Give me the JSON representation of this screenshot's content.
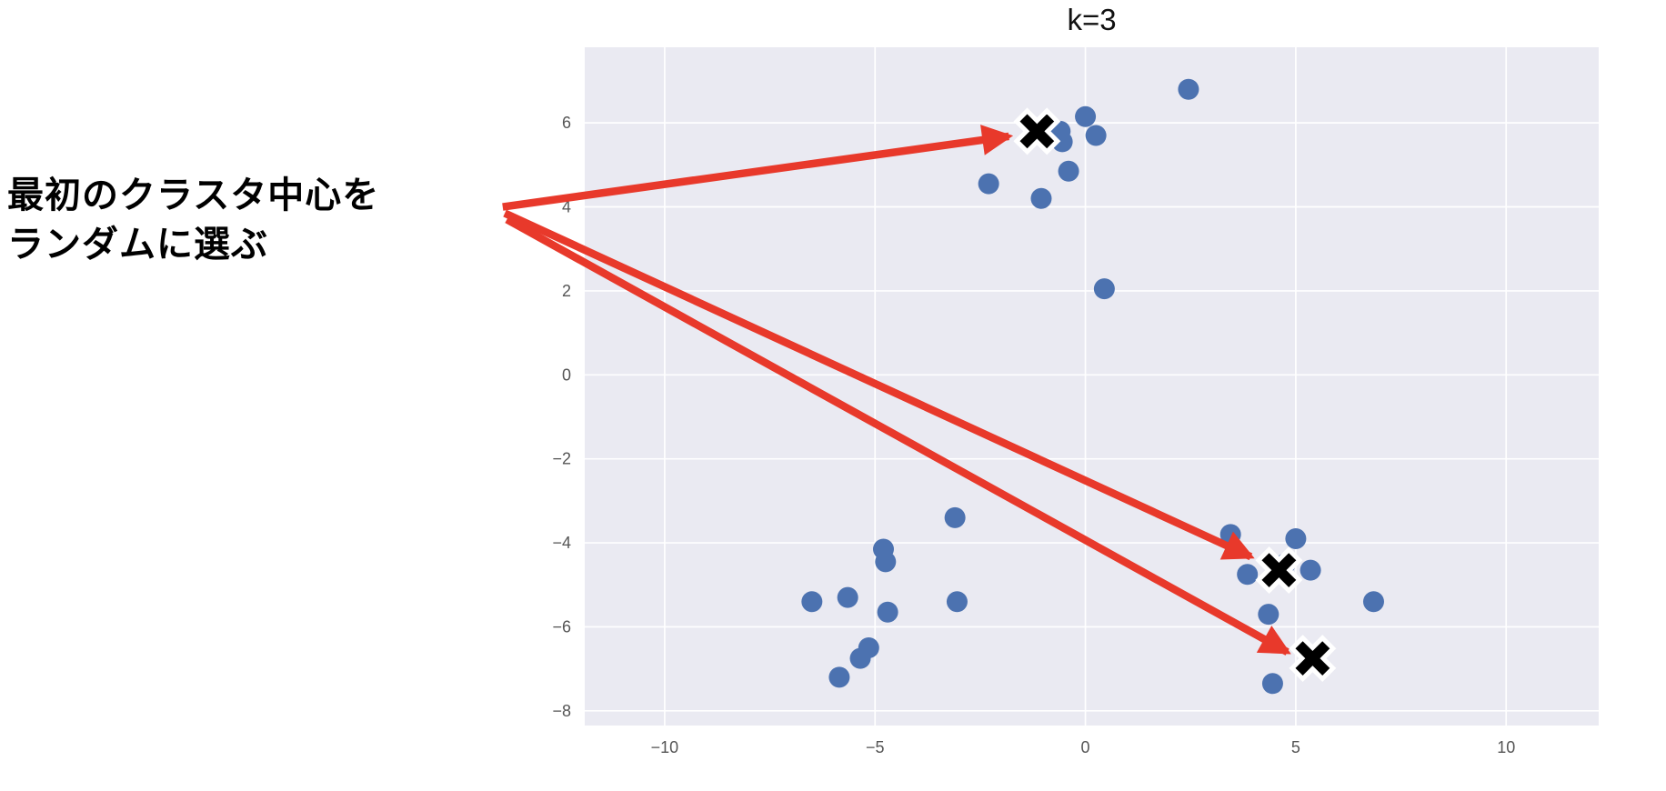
{
  "title": "k=3",
  "annotation": {
    "line1": "最初のクラスタ中心を",
    "line2": "ランダムに選ぶ"
  },
  "chart_data": {
    "type": "scatter",
    "title": "k=3",
    "xlabel": "",
    "ylabel": "",
    "xlim": [
      -11.9,
      12.2
    ],
    "ylim": [
      -8.35,
      7.8
    ],
    "xticks": [
      -10,
      -5,
      0,
      5,
      10
    ],
    "xtick_labels": [
      "−10",
      "−5",
      "0",
      "5",
      "10"
    ],
    "yticks": [
      -8,
      -6,
      -4,
      -2,
      0,
      2,
      4,
      6
    ],
    "ytick_labels": [
      "−8",
      "−6",
      "−4",
      "−2",
      "0",
      "2",
      "4",
      "6"
    ],
    "grid": true,
    "legend": "none",
    "plot_background": "#EAEAF2",
    "grid_color": "#FFFFFF",
    "tick_label_color": "#555555",
    "series": [
      {
        "name": "data-points",
        "marker": "circle",
        "color": "#4C72B0",
        "points": [
          [
            2.45,
            6.8
          ],
          [
            0.0,
            6.15
          ],
          [
            -1.15,
            5.8
          ],
          [
            -0.6,
            5.8
          ],
          [
            -0.55,
            5.55
          ],
          [
            0.25,
            5.7
          ],
          [
            -0.4,
            4.85
          ],
          [
            -2.3,
            4.55
          ],
          [
            -1.05,
            4.2
          ],
          [
            0.45,
            2.05
          ],
          [
            -3.1,
            -3.4
          ],
          [
            -4.8,
            -4.15
          ],
          [
            -4.75,
            -4.45
          ],
          [
            -5.65,
            -5.3
          ],
          [
            -6.5,
            -5.4
          ],
          [
            -4.7,
            -5.65
          ],
          [
            -3.05,
            -5.4
          ],
          [
            -5.15,
            -6.5
          ],
          [
            -5.35,
            -6.75
          ],
          [
            -5.85,
            -7.2
          ],
          [
            3.45,
            -3.8
          ],
          [
            5.0,
            -3.9
          ],
          [
            3.85,
            -4.75
          ],
          [
            4.65,
            -4.65
          ],
          [
            4.75,
            -4.5
          ],
          [
            5.35,
            -4.65
          ],
          [
            4.35,
            -5.7
          ],
          [
            6.85,
            -5.4
          ],
          [
            5.45,
            -6.8
          ],
          [
            4.45,
            -7.35
          ]
        ]
      },
      {
        "name": "initial-centroids",
        "marker": "X",
        "color": "#000000",
        "edge_color": "#FFFFFF",
        "points": [
          [
            -1.15,
            5.8
          ],
          [
            4.6,
            -4.65
          ],
          [
            5.4,
            -6.75
          ]
        ]
      }
    ],
    "annotations": {
      "label": "最初のクラスタ中心を ランダムに選ぶ",
      "arrow_color": "#E8392B",
      "arrows": [
        {
          "from": [
            -13.85,
            4.0
          ],
          "to": [
            -1.82,
            5.68
          ]
        },
        {
          "from": [
            -13.8,
            3.85
          ],
          "to": [
            3.93,
            -4.33
          ]
        },
        {
          "from": [
            -13.75,
            3.7
          ],
          "to": [
            4.8,
            -6.6
          ]
        }
      ]
    }
  }
}
